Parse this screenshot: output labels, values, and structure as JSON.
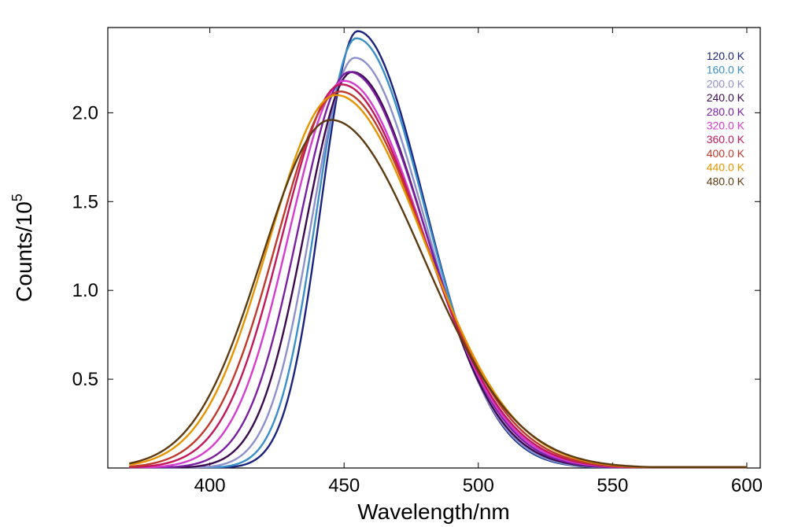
{
  "chart_data": {
    "type": "line",
    "title": "",
    "xlabel": "Wavelength/nm",
    "ylabel": {
      "base": "Counts/10",
      "exponent": "5"
    },
    "xlim": [
      362,
      605
    ],
    "ylim": [
      0,
      2.48
    ],
    "xticks": [
      400,
      450,
      500,
      550,
      600
    ],
    "xtick_labels": [
      "400",
      "450",
      "500",
      "550",
      "600"
    ],
    "yticks": [
      0.5,
      1.0,
      1.5,
      2.0
    ],
    "ytick_labels": [
      "0.5",
      "1.0",
      "1.5",
      "2.0"
    ],
    "grid": false,
    "legend_position": "top-right",
    "x_start": 370,
    "x_end": 600,
    "series": [
      {
        "name": "120.0 K",
        "color": "#1a237e",
        "peak_x": 455,
        "peak_y": 2.46,
        "sigma_left": 13.5,
        "sigma_right": 25.0,
        "tail_left": 380,
        "tail_right": 600
      },
      {
        "name": "160.0 K",
        "color": "#3a8fc8",
        "peak_x": 454.5,
        "peak_y": 2.42,
        "sigma_left": 14.5,
        "sigma_right": 25.5,
        "tail_left": 375,
        "tail_right": 600
      },
      {
        "name": "200.0 K",
        "color": "#8e90cc",
        "peak_x": 454,
        "peak_y": 2.31,
        "sigma_left": 16.0,
        "sigma_right": 26.0,
        "tail_left": 373,
        "tail_right": 600
      },
      {
        "name": "240.0 K",
        "color": "#3b0a4f",
        "peak_x": 453,
        "peak_y": 2.23,
        "sigma_left": 17.5,
        "sigma_right": 27.0,
        "tail_left": 371,
        "tail_right": 600
      },
      {
        "name": "280.0 K",
        "color": "#7b1fa2",
        "peak_x": 452,
        "peak_y": 2.23,
        "sigma_left": 19.0,
        "sigma_right": 28.0,
        "tail_left": 370,
        "tail_right": 600
      },
      {
        "name": "320.0 K",
        "color": "#d63bd0",
        "peak_x": 450,
        "peak_y": 2.18,
        "sigma_left": 20.5,
        "sigma_right": 29.5,
        "tail_left": 370,
        "tail_right": 600
      },
      {
        "name": "360.0 K",
        "color": "#c2185b",
        "peak_x": 449,
        "peak_y": 2.16,
        "sigma_left": 22.0,
        "sigma_right": 30.5,
        "tail_left": 370,
        "tail_right": 600
      },
      {
        "name": "400.0 K",
        "color": "#c0392b",
        "peak_x": 448.5,
        "peak_y": 2.12,
        "sigma_left": 23.5,
        "sigma_right": 31.5,
        "tail_left": 370,
        "tail_right": 600
      },
      {
        "name": "440.0 K",
        "color": "#e59400",
        "peak_x": 447,
        "peak_y": 2.1,
        "sigma_left": 25.0,
        "sigma_right": 33.0,
        "tail_left": 370,
        "tail_right": 600
      },
      {
        "name": "480.0 K",
        "color": "#5d3a10",
        "peak_x": 445,
        "peak_y": 1.96,
        "sigma_left": 25.5,
        "sigma_right": 34.5,
        "tail_left": 370,
        "tail_right": 600
      }
    ]
  }
}
